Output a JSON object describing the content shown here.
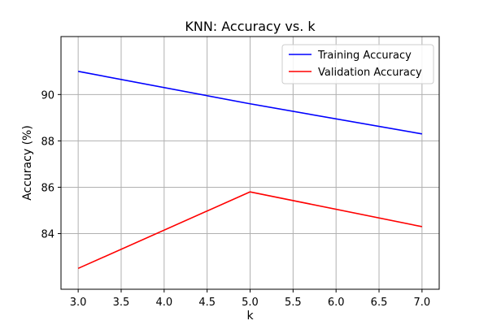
{
  "chart_data": {
    "type": "line",
    "title": "KNN: Accuracy vs. k",
    "xlabel": "k",
    "ylabel": "Accuracy (%)",
    "xlim": [
      2.8,
      7.2
    ],
    "ylim": [
      81.6,
      92.5
    ],
    "xticks": [
      3.0,
      3.5,
      4.0,
      4.5,
      5.0,
      5.5,
      6.0,
      6.5,
      7.0
    ],
    "xtick_labels": [
      "3.0",
      "3.5",
      "4.0",
      "4.5",
      "5.0",
      "5.5",
      "6.0",
      "6.5",
      "7.0"
    ],
    "yticks": [
      84,
      86,
      88,
      90
    ],
    "ytick_labels": [
      "84",
      "86",
      "88",
      "90"
    ],
    "grid": true,
    "legend_position": "top-right",
    "x": [
      3,
      5,
      7
    ],
    "series": [
      {
        "name": "Training Accuracy",
        "color": "#0000ff",
        "values": [
          91.0,
          89.6,
          88.3
        ]
      },
      {
        "name": "Validation Accuracy",
        "color": "#ff0000",
        "values": [
          82.5,
          85.8,
          84.3
        ]
      }
    ]
  }
}
